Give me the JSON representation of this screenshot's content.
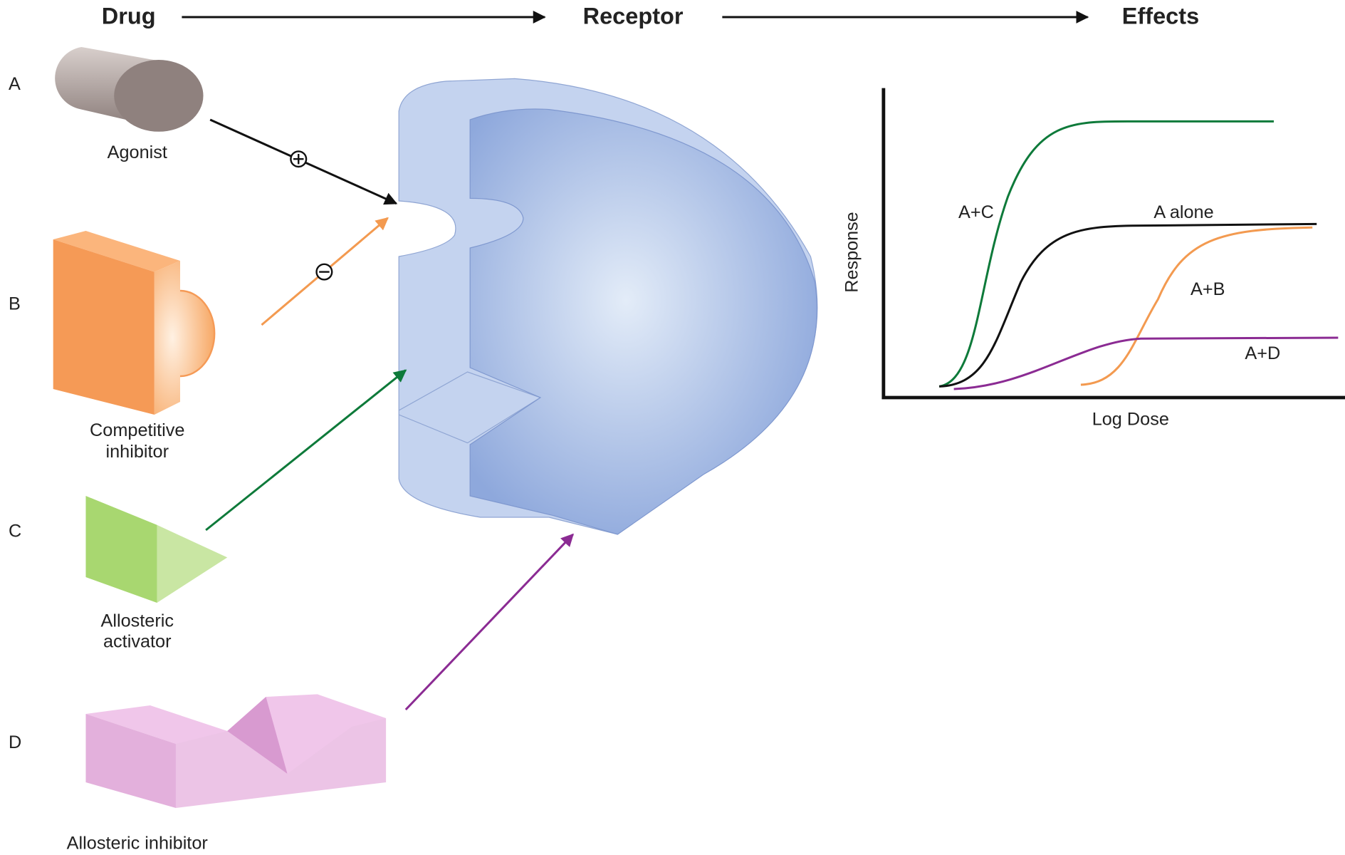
{
  "header": {
    "drug": "Drug",
    "receptor": "Receptor",
    "effects": "Effects"
  },
  "drugs": [
    {
      "letter": "A",
      "label": [
        "Agonist"
      ]
    },
    {
      "letter": "B",
      "label": [
        "Competitive",
        "inhibitor"
      ]
    },
    {
      "letter": "C",
      "label": [
        "Allosteric",
        "activator"
      ]
    },
    {
      "letter": "D",
      "label": [
        "Allosteric inhibitor"
      ]
    }
  ],
  "graph": {
    "y_label": "Response",
    "x_label": "Log Dose",
    "curves": [
      {
        "label": "A+C"
      },
      {
        "label": "A alone"
      },
      {
        "label": "A+B"
      },
      {
        "label": "A+D"
      }
    ]
  }
}
